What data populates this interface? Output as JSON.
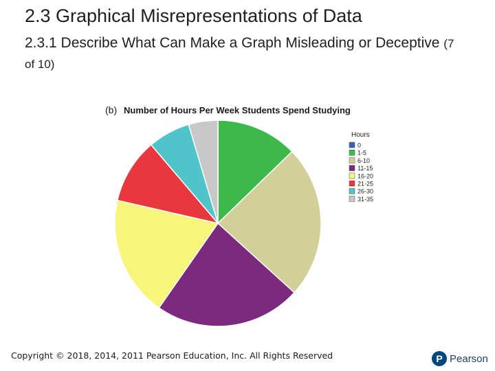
{
  "slide": {
    "title": "2.3 Graphical Misrepresentations of Data",
    "subtitle": "2.3.1 Describe What Can Make a Graph Misleading or Deceptive",
    "subtitle_suffix": "(7 of 10)",
    "copyright": "Copyright © 2018, 2014, 2011 Pearson Education, Inc. All Rights Reserved",
    "logo_letter": "P",
    "logo_text": "Pearson"
  },
  "chart_data": {
    "type": "pie",
    "label": "(b)",
    "title": "Number of Hours Per Week Students Spend Studying",
    "legend_title": "Hours",
    "legend_position": "right",
    "categories": [
      "0",
      "1-5",
      "6-10",
      "11-15",
      "16-20",
      "21-25",
      "26-30",
      "31-35"
    ],
    "values": [
      0,
      12.5,
      23.5,
      22.5,
      18.5,
      10,
      6.5,
      4.5
    ],
    "colors": [
      "#3f62b0",
      "#3db84a",
      "#d3cf98",
      "#7b2a7f",
      "#f7f57c",
      "#e8383d",
      "#4fc4c9",
      "#c8c8c8"
    ]
  }
}
